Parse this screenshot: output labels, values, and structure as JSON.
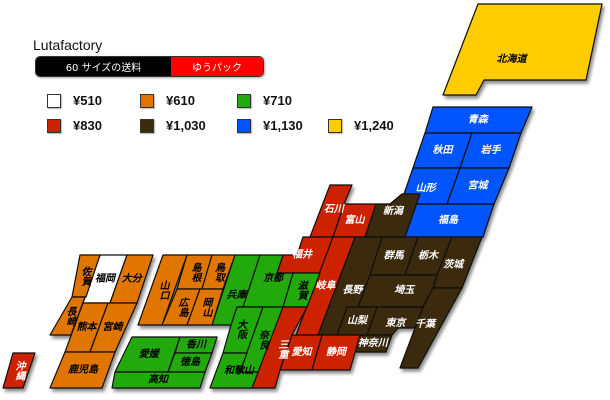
{
  "title": "Lutafactory",
  "tab": {
    "left_label": "60 サイズの送料",
    "right_label": "ゆうパック",
    "left_color": "#000000",
    "right_color": "#ff0000"
  },
  "rates": [
    {
      "key": "w",
      "label": "¥510",
      "color": "#ffffff",
      "text_color": "#000000"
    },
    {
      "key": "o",
      "label": "¥610",
      "color": "#e07400",
      "text_color": "#000000"
    },
    {
      "key": "g",
      "label": "¥710",
      "color": "#22aa11",
      "text_color": "#000000"
    },
    {
      "key": "r",
      "label": "¥830",
      "color": "#cc2200",
      "text_color": "#ffffff"
    },
    {
      "key": "d",
      "label": "¥1,030",
      "color": "#3a2c08",
      "text_color": "#ffffff"
    },
    {
      "key": "b",
      "label": "¥1,130",
      "color": "#0055ff",
      "text_color": "#ffffff"
    },
    {
      "key": "y",
      "label": "¥1,240",
      "color": "#ffcc00",
      "text_color": "#000000"
    }
  ],
  "prefectures": [
    {
      "name": "北海道",
      "rate": "y"
    },
    {
      "name": "青森",
      "rate": "b"
    },
    {
      "name": "秋田",
      "rate": "b"
    },
    {
      "name": "岩手",
      "rate": "b"
    },
    {
      "name": "山形",
      "rate": "b"
    },
    {
      "name": "宮城",
      "rate": "b"
    },
    {
      "name": "福島",
      "rate": "b"
    },
    {
      "name": "新潟",
      "rate": "d"
    },
    {
      "name": "群馬",
      "rate": "d"
    },
    {
      "name": "栃木",
      "rate": "d"
    },
    {
      "name": "茨城",
      "rate": "d"
    },
    {
      "name": "埼玉",
      "rate": "d"
    },
    {
      "name": "千葉",
      "rate": "d"
    },
    {
      "name": "東京",
      "rate": "d"
    },
    {
      "name": "神奈川",
      "rate": "d"
    },
    {
      "name": "山梨",
      "rate": "d"
    },
    {
      "name": "長野",
      "rate": "d"
    },
    {
      "name": "富山",
      "rate": "r"
    },
    {
      "name": "石川",
      "rate": "r"
    },
    {
      "name": "福井",
      "rate": "r"
    },
    {
      "name": "岐阜",
      "rate": "r"
    },
    {
      "name": "滋賀",
      "rate": "g"
    },
    {
      "name": "京都",
      "rate": "g"
    },
    {
      "name": "兵庫",
      "rate": "g"
    },
    {
      "name": "大阪",
      "rate": "g"
    },
    {
      "name": "奈良",
      "rate": "g"
    },
    {
      "name": "和歌山",
      "rate": "g"
    },
    {
      "name": "三重",
      "rate": "r"
    },
    {
      "name": "愛知",
      "rate": "r"
    },
    {
      "name": "静岡",
      "rate": "r"
    },
    {
      "name": "山口",
      "rate": "o"
    },
    {
      "name": "島根",
      "rate": "o"
    },
    {
      "name": "鳥取",
      "rate": "o"
    },
    {
      "name": "広島",
      "rate": "o"
    },
    {
      "name": "岡山",
      "rate": "o"
    },
    {
      "name": "福岡",
      "rate": "w"
    },
    {
      "name": "佐賀",
      "rate": "o"
    },
    {
      "name": "大分",
      "rate": "o"
    },
    {
      "name": "長崎",
      "rate": "o"
    },
    {
      "name": "熊本",
      "rate": "o"
    },
    {
      "name": "宮崎",
      "rate": "o"
    },
    {
      "name": "鹿児島",
      "rate": "o"
    },
    {
      "name": "愛媛",
      "rate": "g"
    },
    {
      "name": "香川",
      "rate": "g"
    },
    {
      "name": "徳島",
      "rate": "g"
    },
    {
      "name": "高知",
      "rate": "g"
    },
    {
      "name": "沖縄",
      "rate": "r"
    }
  ]
}
